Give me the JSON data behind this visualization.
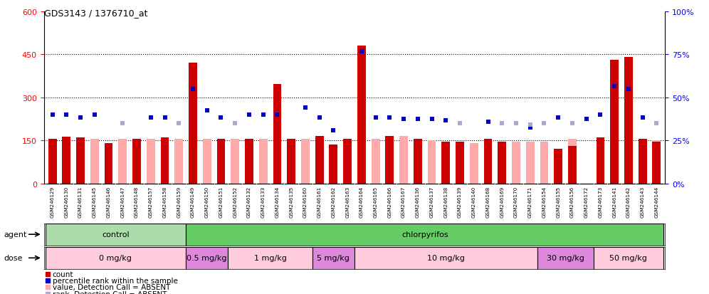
{
  "title": "GDS3143 / 1376710_at",
  "samples": [
    "GSM246129",
    "GSM246130",
    "GSM246131",
    "GSM246145",
    "GSM246146",
    "GSM246147",
    "GSM246148",
    "GSM246157",
    "GSM246158",
    "GSM246159",
    "GSM246149",
    "GSM246150",
    "GSM246151",
    "GSM246152",
    "GSM246132",
    "GSM246133",
    "GSM246134",
    "GSM246135",
    "GSM246160",
    "GSM246161",
    "GSM246162",
    "GSM246163",
    "GSM246164",
    "GSM246165",
    "GSM246166",
    "GSM246167",
    "GSM246136",
    "GSM246137",
    "GSM246138",
    "GSM246139",
    "GSM246140",
    "GSM246168",
    "GSM246169",
    "GSM246170",
    "GSM246171",
    "GSM246154",
    "GSM246155",
    "GSM246156",
    "GSM246172",
    "GSM246173",
    "GSM246141",
    "GSM246142",
    "GSM246143",
    "GSM246144"
  ],
  "count_values": [
    155,
    163,
    160,
    0,
    140,
    0,
    155,
    0,
    160,
    0,
    420,
    0,
    155,
    0,
    155,
    0,
    345,
    155,
    0,
    165,
    135,
    155,
    480,
    0,
    165,
    0,
    155,
    0,
    145,
    145,
    0,
    155,
    145,
    0,
    0,
    0,
    120,
    130,
    0,
    160,
    430,
    440,
    155,
    145
  ],
  "pct_rank_values": [
    240,
    240,
    230,
    240,
    0,
    210,
    0,
    230,
    230,
    0,
    330,
    255,
    230,
    0,
    240,
    240,
    240,
    0,
    265,
    230,
    185,
    0,
    460,
    230,
    230,
    225,
    225,
    225,
    220,
    0,
    0,
    215,
    0,
    0,
    195,
    0,
    230,
    0,
    225,
    240,
    340,
    330,
    230,
    0
  ],
  "absent_count": [
    0,
    0,
    0,
    155,
    0,
    155,
    0,
    155,
    0,
    155,
    0,
    155,
    0,
    155,
    0,
    155,
    0,
    0,
    155,
    0,
    0,
    0,
    0,
    155,
    0,
    165,
    0,
    150,
    0,
    0,
    140,
    0,
    0,
    145,
    145,
    145,
    0,
    155,
    0,
    0,
    0,
    0,
    0,
    150
  ],
  "absent_rank": [
    0,
    0,
    0,
    0,
    0,
    210,
    0,
    0,
    0,
    210,
    0,
    0,
    0,
    210,
    0,
    0,
    0,
    0,
    0,
    0,
    0,
    0,
    0,
    0,
    0,
    0,
    0,
    0,
    0,
    210,
    0,
    0,
    210,
    210,
    205,
    210,
    0,
    210,
    0,
    0,
    0,
    0,
    0,
    210
  ],
  "agent_groups": [
    {
      "label": "control",
      "start": 0,
      "end": 10,
      "color": "#aaddaa"
    },
    {
      "label": "chlorpyrifos",
      "start": 10,
      "end": 44,
      "color": "#66cc66"
    }
  ],
  "dose_groups": [
    {
      "label": "0 mg/kg",
      "start": 0,
      "end": 10,
      "color": "#ffccdd"
    },
    {
      "label": "0.5 mg/kg",
      "start": 10,
      "end": 13,
      "color": "#dd88dd"
    },
    {
      "label": "1 mg/kg",
      "start": 13,
      "end": 19,
      "color": "#ffccdd"
    },
    {
      "label": "5 mg/kg",
      "start": 19,
      "end": 22,
      "color": "#dd88dd"
    },
    {
      "label": "10 mg/kg",
      "start": 22,
      "end": 35,
      "color": "#ffccdd"
    },
    {
      "label": "30 mg/kg",
      "start": 35,
      "end": 39,
      "color": "#dd88dd"
    },
    {
      "label": "50 mg/kg",
      "start": 39,
      "end": 44,
      "color": "#ffccdd"
    }
  ],
  "ylim_left": [
    0,
    600
  ],
  "ylim_right": [
    0,
    100
  ],
  "yticks_left": [
    0,
    150,
    300,
    450,
    600
  ],
  "yticks_right": [
    0,
    25,
    50,
    75,
    100
  ],
  "hlines": [
    150,
    300,
    450
  ],
  "bar_color_count": "#cc0000",
  "bar_color_absent": "#ffaaaa",
  "marker_color_present": "#0000cc",
  "marker_color_absent": "#aaaacc",
  "legend_items": [
    {
      "color": "#cc0000",
      "label": "count"
    },
    {
      "color": "#0000cc",
      "label": "percentile rank within the sample"
    },
    {
      "color": "#ffaaaa",
      "label": "value, Detection Call = ABSENT"
    },
    {
      "color": "#aaaacc",
      "label": "rank, Detection Call = ABSENT"
    }
  ]
}
